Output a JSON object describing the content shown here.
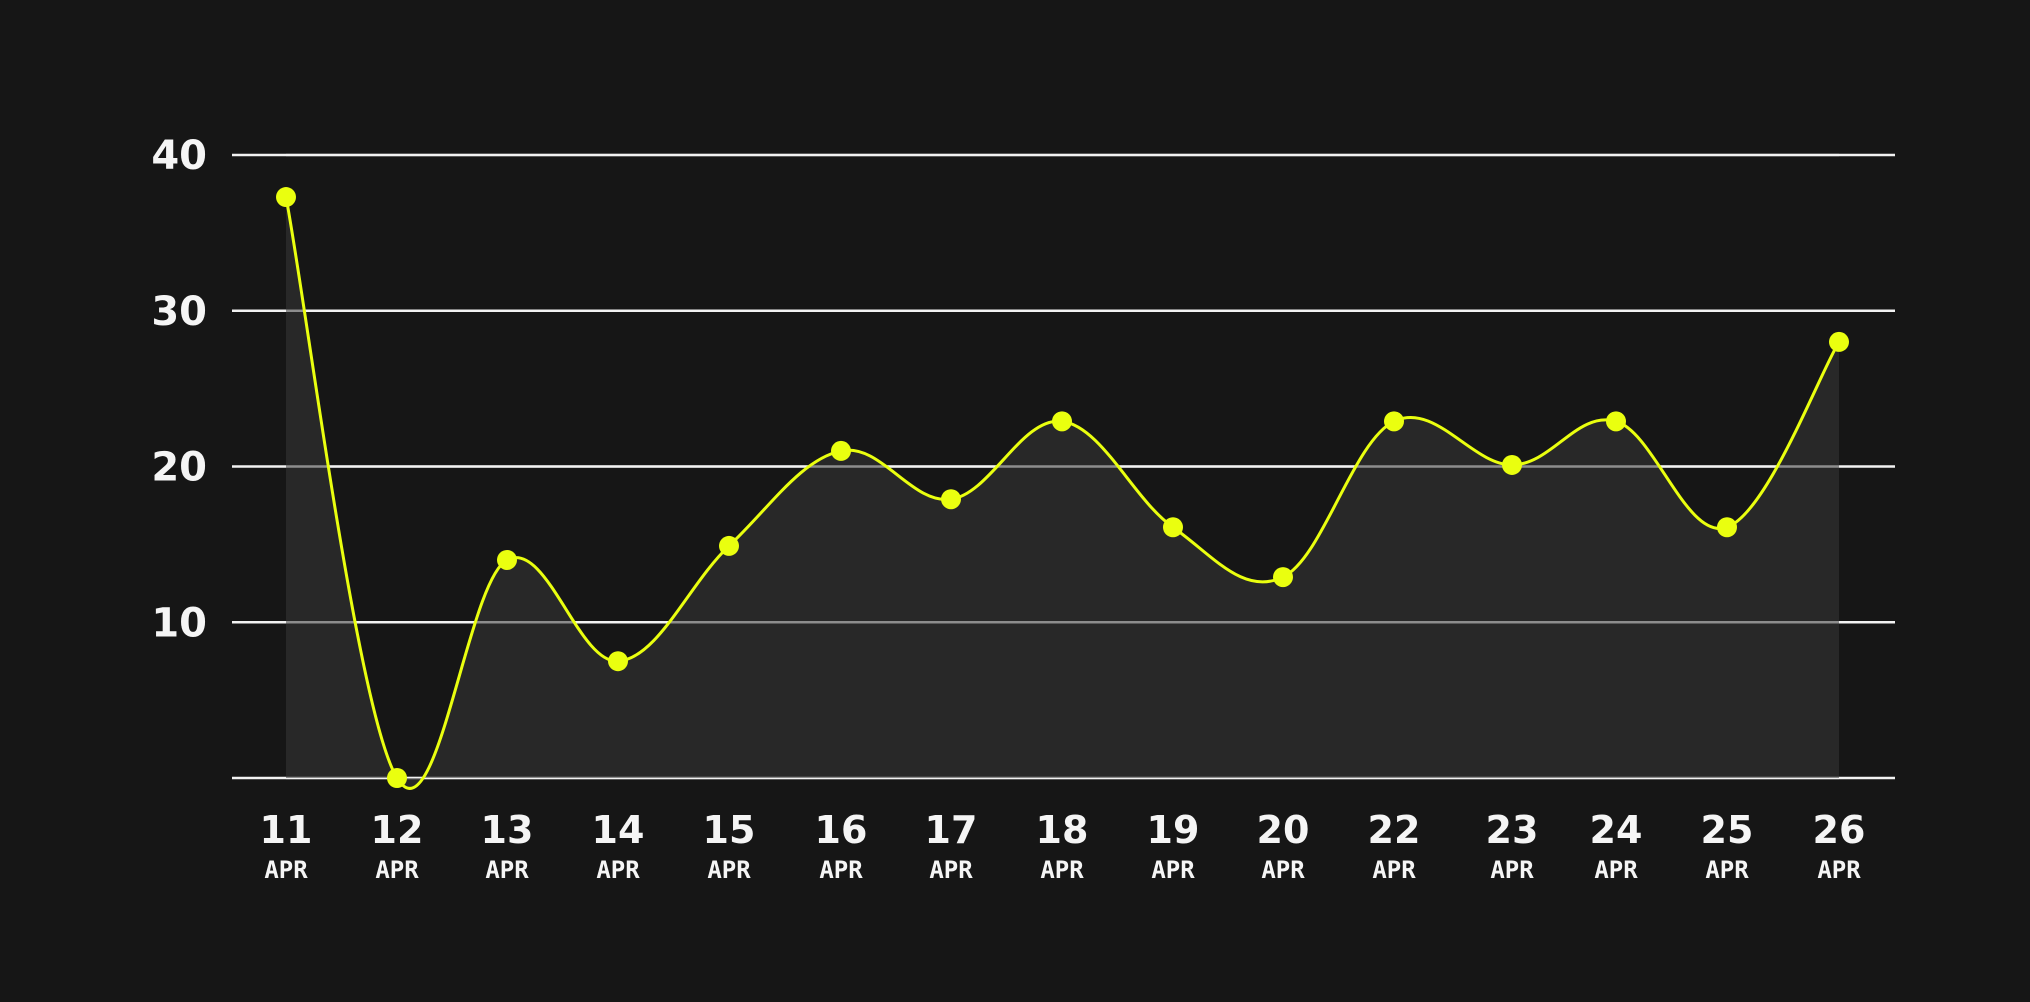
{
  "chart_data": {
    "type": "line",
    "style": "smooth-area",
    "categories": [
      {
        "day": "11",
        "month": "APR"
      },
      {
        "day": "12",
        "month": "APR"
      },
      {
        "day": "13",
        "month": "APR"
      },
      {
        "day": "14",
        "month": "APR"
      },
      {
        "day": "15",
        "month": "APR"
      },
      {
        "day": "16",
        "month": "APR"
      },
      {
        "day": "17",
        "month": "APR"
      },
      {
        "day": "18",
        "month": "APR"
      },
      {
        "day": "19",
        "month": "APR"
      },
      {
        "day": "20",
        "month": "APR"
      },
      {
        "day": "22",
        "month": "APR"
      },
      {
        "day": "23",
        "month": "APR"
      },
      {
        "day": "24",
        "month": "APR"
      },
      {
        "day": "25",
        "month": "APR"
      },
      {
        "day": "26",
        "month": "APR"
      }
    ],
    "x_dates": [
      "2024-04-11",
      "2024-04-12",
      "2024-04-13",
      "2024-04-14",
      "2024-04-15",
      "2024-04-16",
      "2024-04-17",
      "2024-04-18",
      "2024-04-19",
      "2024-04-20",
      "2024-04-22",
      "2024-04-23",
      "2024-04-24",
      "2024-04-25",
      "2024-04-26"
    ],
    "series": [
      {
        "values": [
          37.3,
          0,
          14,
          7.5,
          14.9,
          21,
          17.9,
          22.9,
          16.1,
          12.9,
          22.9,
          20.1,
          22.9,
          16.1,
          28
        ]
      }
    ],
    "y_ticks": [
      "10",
      "20",
      "30",
      "40"
    ],
    "ylim": [
      0,
      40
    ],
    "grid": true,
    "legend": "none",
    "colors": {
      "background": "#161616",
      "line": "#eaff0f",
      "area": "#2a2a2a",
      "grid": "#f2f2f2",
      "text": "#f5f5f5"
    }
  }
}
